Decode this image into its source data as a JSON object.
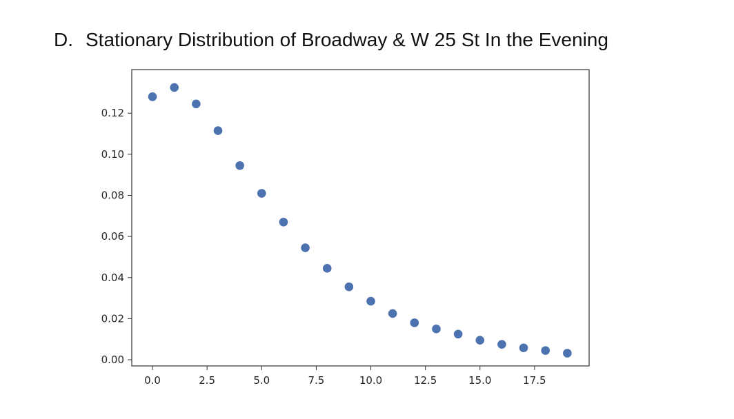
{
  "heading": {
    "marker": "D.",
    "text": "Stationary Distribution of Broadway & W 25 St In the Evening"
  },
  "chart_data": {
    "type": "scatter",
    "title": "",
    "xlabel": "",
    "ylabel": "",
    "x": [
      0,
      1,
      2,
      3,
      4,
      5,
      6,
      7,
      8,
      9,
      10,
      11,
      12,
      13,
      14,
      15,
      16,
      17,
      18,
      19
    ],
    "y": [
      0.128,
      0.1325,
      0.1245,
      0.1115,
      0.0945,
      0.081,
      0.067,
      0.0545,
      0.0445,
      0.0355,
      0.0285,
      0.0225,
      0.018,
      0.015,
      0.0125,
      0.0095,
      0.0075,
      0.0058,
      0.0045,
      0.0032
    ],
    "xlim": [
      -0.95,
      20.0
    ],
    "ylim": [
      -0.003,
      0.1412
    ],
    "xticks": [
      0.0,
      2.5,
      5.0,
      7.5,
      10.0,
      12.5,
      15.0,
      17.5
    ],
    "xtick_labels": [
      "0.0",
      "2.5",
      "5.0",
      "7.5",
      "10.0",
      "12.5",
      "15.0",
      "17.5"
    ],
    "yticks": [
      0.0,
      0.02,
      0.04,
      0.06,
      0.08,
      0.1,
      0.12
    ],
    "ytick_labels": [
      "0.00",
      "0.02",
      "0.04",
      "0.06",
      "0.08",
      "0.10",
      "0.12"
    ],
    "grid": false,
    "marker_color": "#4c72b0"
  }
}
